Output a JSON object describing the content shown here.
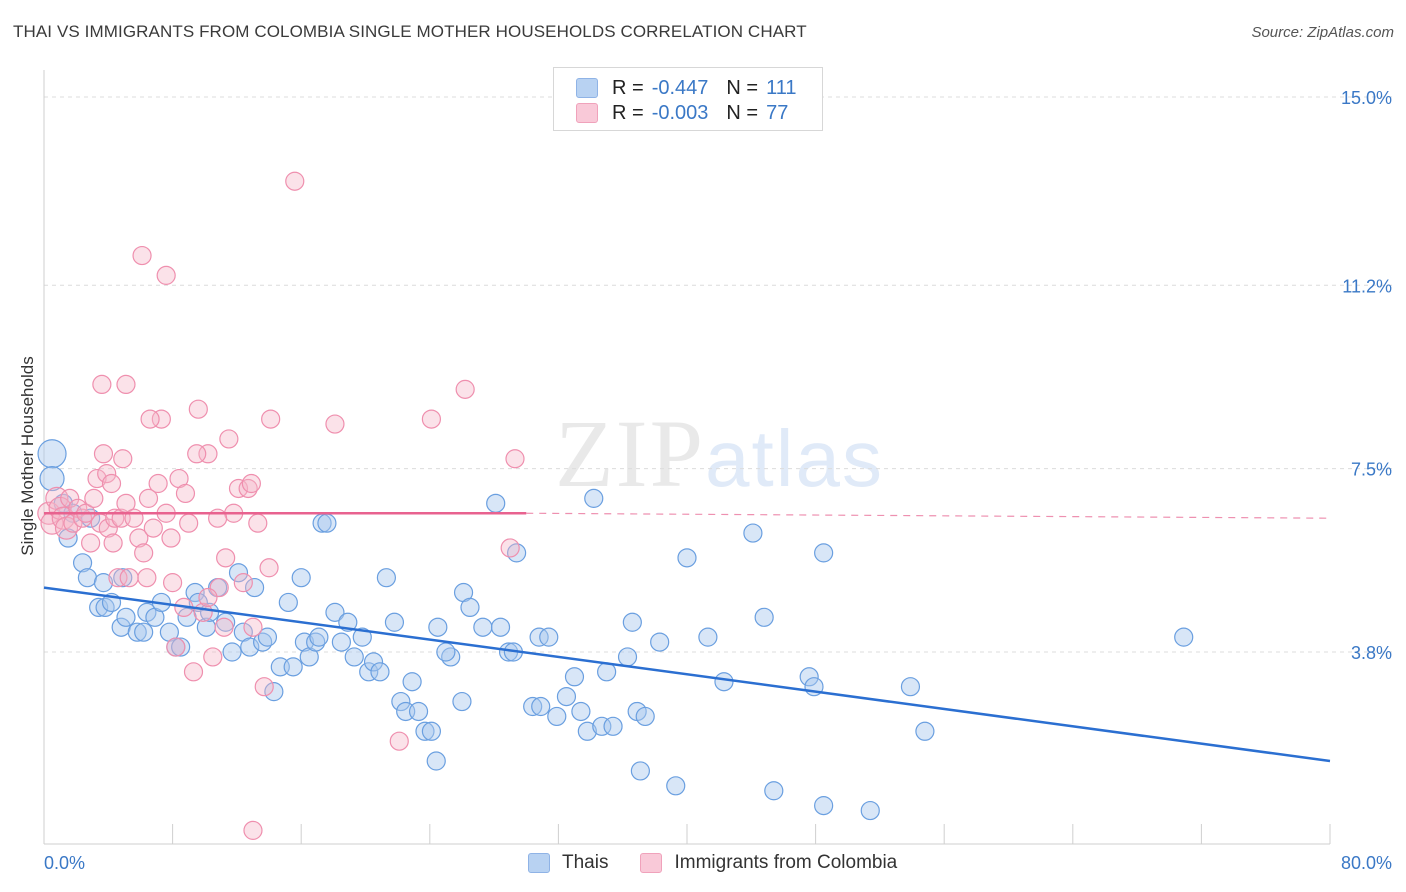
{
  "title": "THAI VS IMMIGRANTS FROM COLOMBIA SINGLE MOTHER HOUSEHOLDS CORRELATION CHART",
  "source": "Source: ZipAtlas.com",
  "watermark": {
    "zip": "ZIP",
    "atlas": "atlas"
  },
  "legend": {
    "r_label": "R =",
    "n_label": "N =",
    "rows": [
      {
        "r": "-0.447",
        "n": "111",
        "color": "#a9c8ee"
      },
      {
        "r": "-0.003",
        "n": "77",
        "color": "#f6b6c9"
      }
    ]
  },
  "bottom_legend": [
    "Thais",
    "Immigrants from Colombia"
  ],
  "chart_data": {
    "type": "scatter",
    "title": "THAI VS IMMIGRANTS FROM COLOMBIA SINGLE MOTHER HOUSEHOLDS CORRELATION CHART",
    "xlabel": "",
    "ylabel": "Single Mother Households",
    "xlim": [
      0,
      80
    ],
    "ylim": [
      0,
      15.5
    ],
    "x_tick_labels": [
      "0.0%",
      "80.0%"
    ],
    "y_ticks": [
      3.8,
      7.5,
      11.2,
      15.0
    ],
    "y_tick_labels": [
      "3.8%",
      "7.5%",
      "11.2%",
      "15.0%"
    ],
    "grid": "horizontal dashed",
    "series": [
      {
        "name": "Thais",
        "color": "#6a9fe0",
        "line_color": "#2b6fd1",
        "trend": {
          "x": [
            0,
            80
          ],
          "y": [
            5.1,
            1.6
          ]
        },
        "points": [
          [
            0.5,
            7.8
          ],
          [
            0.5,
            7.3
          ],
          [
            1.2,
            6.8
          ],
          [
            1.8,
            6.6
          ],
          [
            1.5,
            6.1
          ],
          [
            2.4,
            5.6
          ],
          [
            2.7,
            5.3
          ],
          [
            2.9,
            6.5
          ],
          [
            3.7,
            5.2
          ],
          [
            3.4,
            4.7
          ],
          [
            3.8,
            4.7
          ],
          [
            4.2,
            4.8
          ],
          [
            4.8,
            4.3
          ],
          [
            5.1,
            4.5
          ],
          [
            4.9,
            5.3
          ],
          [
            5.8,
            4.2
          ],
          [
            6.4,
            4.6
          ],
          [
            6.2,
            4.2
          ],
          [
            6.9,
            4.5
          ],
          [
            7.3,
            4.8
          ],
          [
            7.8,
            4.2
          ],
          [
            8.2,
            3.9
          ],
          [
            8.5,
            3.9
          ],
          [
            8.9,
            4.5
          ],
          [
            9.4,
            5.0
          ],
          [
            9.6,
            4.8
          ],
          [
            10.1,
            4.3
          ],
          [
            10.3,
            4.6
          ],
          [
            10.8,
            5.1
          ],
          [
            11.3,
            4.4
          ],
          [
            11.7,
            3.8
          ],
          [
            12.1,
            5.4
          ],
          [
            12.4,
            4.2
          ],
          [
            12.8,
            3.9
          ],
          [
            13.1,
            5.1
          ],
          [
            13.6,
            4.0
          ],
          [
            13.9,
            4.1
          ],
          [
            14.3,
            3.0
          ],
          [
            14.7,
            3.5
          ],
          [
            15.2,
            4.8
          ],
          [
            15.5,
            3.5
          ],
          [
            16.0,
            5.3
          ],
          [
            16.2,
            4.0
          ],
          [
            16.5,
            3.7
          ],
          [
            16.9,
            4.0
          ],
          [
            17.1,
            4.1
          ],
          [
            17.3,
            6.4
          ],
          [
            17.6,
            6.4
          ],
          [
            18.1,
            4.6
          ],
          [
            18.5,
            4.0
          ],
          [
            18.9,
            4.4
          ],
          [
            19.3,
            3.7
          ],
          [
            19.8,
            4.1
          ],
          [
            20.2,
            3.4
          ],
          [
            20.5,
            3.6
          ],
          [
            20.9,
            3.4
          ],
          [
            21.3,
            5.3
          ],
          [
            21.8,
            4.4
          ],
          [
            22.2,
            2.8
          ],
          [
            22.5,
            2.6
          ],
          [
            22.9,
            3.2
          ],
          [
            23.3,
            2.6
          ],
          [
            23.7,
            2.2
          ],
          [
            24.1,
            2.2
          ],
          [
            24.5,
            4.3
          ],
          [
            24.4,
            1.6
          ],
          [
            25.3,
            3.7
          ],
          [
            26.1,
            5.0
          ],
          [
            26.5,
            4.7
          ],
          [
            26.0,
            2.8
          ],
          [
            27.3,
            4.3
          ],
          [
            28.1,
            6.8
          ],
          [
            28.4,
            4.3
          ],
          [
            28.9,
            3.8
          ],
          [
            29.2,
            3.8
          ],
          [
            29.4,
            5.8
          ],
          [
            30.4,
            2.7
          ],
          [
            30.9,
            2.7
          ],
          [
            30.8,
            4.1
          ],
          [
            31.4,
            4.1
          ],
          [
            31.9,
            2.5
          ],
          [
            32.5,
            2.9
          ],
          [
            33.0,
            3.3
          ],
          [
            33.4,
            2.6
          ],
          [
            33.8,
            2.2
          ],
          [
            34.2,
            6.9
          ],
          [
            34.7,
            2.3
          ],
          [
            35.0,
            3.4
          ],
          [
            35.4,
            2.3
          ],
          [
            36.3,
            3.7
          ],
          [
            36.6,
            4.4
          ],
          [
            36.9,
            2.6
          ],
          [
            37.4,
            2.5
          ],
          [
            37.1,
            1.4
          ],
          [
            38.3,
            4.0
          ],
          [
            39.3,
            1.1
          ],
          [
            40.0,
            5.7
          ],
          [
            41.3,
            4.1
          ],
          [
            42.3,
            3.2
          ],
          [
            44.1,
            6.2
          ],
          [
            44.8,
            4.5
          ],
          [
            47.6,
            3.3
          ],
          [
            47.9,
            3.1
          ],
          [
            48.5,
            5.8
          ],
          [
            48.5,
            0.7
          ],
          [
            53.9,
            3.1
          ],
          [
            54.8,
            2.2
          ],
          [
            70.9,
            4.1
          ],
          [
            45.4,
            1.0
          ],
          [
            51.4,
            0.6
          ],
          [
            25.0,
            3.8
          ]
        ]
      },
      {
        "name": "Immigrants from Colombia",
        "color": "#f19ab6",
        "line_color": "#e8628f",
        "trend": {
          "x": [
            0,
            30
          ],
          "y": [
            6.6,
            6.6
          ]
        },
        "trend_dashed": {
          "x": [
            30,
            80
          ],
          "y": [
            6.6,
            6.5
          ]
        },
        "points": [
          [
            0.3,
            6.6
          ],
          [
            0.5,
            6.4
          ],
          [
            0.8,
            6.9
          ],
          [
            1.0,
            6.7
          ],
          [
            1.2,
            6.5
          ],
          [
            1.4,
            6.3
          ],
          [
            1.6,
            6.9
          ],
          [
            1.8,
            6.4
          ],
          [
            2.1,
            6.7
          ],
          [
            2.4,
            6.5
          ],
          [
            2.6,
            6.6
          ],
          [
            2.9,
            6.0
          ],
          [
            3.1,
            6.9
          ],
          [
            3.3,
            7.3
          ],
          [
            3.5,
            6.4
          ],
          [
            3.7,
            7.8
          ],
          [
            3.9,
            7.4
          ],
          [
            4.0,
            6.3
          ],
          [
            4.2,
            7.2
          ],
          [
            4.4,
            6.5
          ],
          [
            4.6,
            5.3
          ],
          [
            4.8,
            6.5
          ],
          [
            4.9,
            7.7
          ],
          [
            5.1,
            6.8
          ],
          [
            5.3,
            5.3
          ],
          [
            5.6,
            6.5
          ],
          [
            5.9,
            6.1
          ],
          [
            6.2,
            5.8
          ],
          [
            6.4,
            5.3
          ],
          [
            6.5,
            6.9
          ],
          [
            6.8,
            6.3
          ],
          [
            7.1,
            7.2
          ],
          [
            7.3,
            8.5
          ],
          [
            7.6,
            6.6
          ],
          [
            7.9,
            6.1
          ],
          [
            8.0,
            5.2
          ],
          [
            8.2,
            3.9
          ],
          [
            8.4,
            7.3
          ],
          [
            8.7,
            4.7
          ],
          [
            9.0,
            6.4
          ],
          [
            9.3,
            3.4
          ],
          [
            9.6,
            8.7
          ],
          [
            9.9,
            4.6
          ],
          [
            10.2,
            7.8
          ],
          [
            10.5,
            3.7
          ],
          [
            10.9,
            5.1
          ],
          [
            11.2,
            4.3
          ],
          [
            11.5,
            8.1
          ],
          [
            11.8,
            6.6
          ],
          [
            12.1,
            7.1
          ],
          [
            12.4,
            5.2
          ],
          [
            12.7,
            7.1
          ],
          [
            13.0,
            4.3
          ],
          [
            13.3,
            6.4
          ],
          [
            13.7,
            3.1
          ],
          [
            14.1,
            8.5
          ],
          [
            3.6,
            9.2
          ],
          [
            5.1,
            9.2
          ],
          [
            6.1,
            11.8
          ],
          [
            7.6,
            11.4
          ],
          [
            9.5,
            7.8
          ],
          [
            10.8,
            6.5
          ],
          [
            11.3,
            5.7
          ],
          [
            8.8,
            7.0
          ],
          [
            12.9,
            7.2
          ],
          [
            14.0,
            5.5
          ],
          [
            15.6,
            13.3
          ],
          [
            18.1,
            8.4
          ],
          [
            22.1,
            2.0
          ],
          [
            24.1,
            8.5
          ],
          [
            26.2,
            9.1
          ],
          [
            29.0,
            5.9
          ],
          [
            29.3,
            7.7
          ],
          [
            13.0,
            0.2
          ],
          [
            10.2,
            4.9
          ],
          [
            6.6,
            8.5
          ],
          [
            4.3,
            6.0
          ]
        ]
      }
    ]
  }
}
